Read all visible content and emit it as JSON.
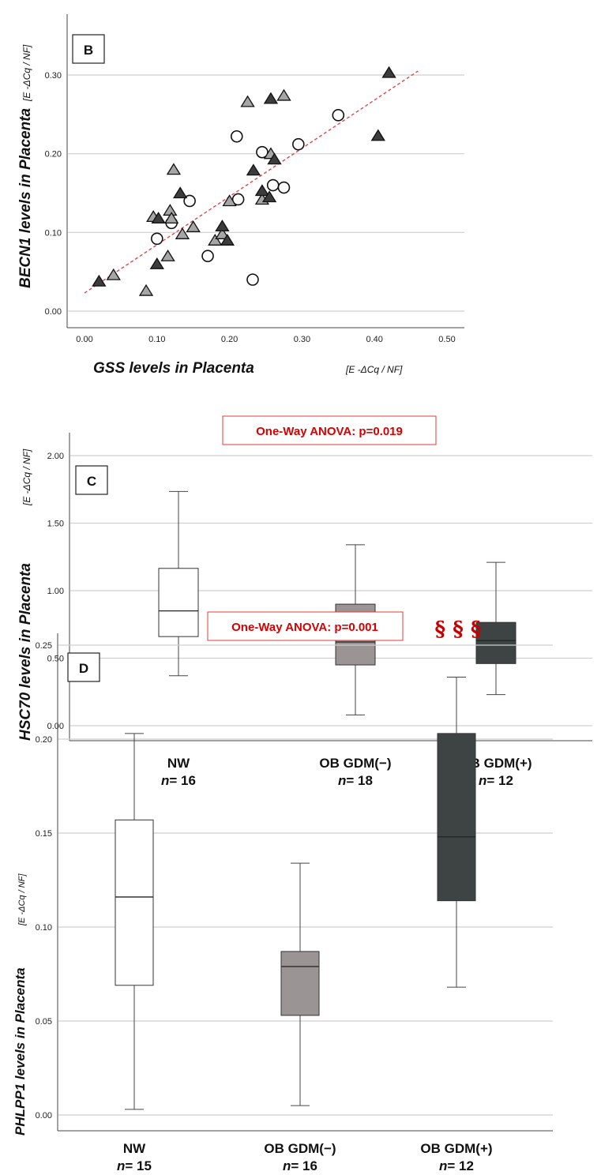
{
  "chart_data": [
    {
      "type": "scatter",
      "panel_label": "B",
      "xlabel": "GSS levels in Placenta",
      "xlabel_unit": "[E -ΔCq / NF]",
      "ylabel": "BECN1 levels in Placenta",
      "ylabel_unit": "[E -ΔCq / NF]",
      "xlim": [
        0.0,
        0.5
      ],
      "ylim": [
        0.0,
        0.3
      ],
      "x_ticks": [
        "0.00",
        "0.10",
        "0.20",
        "0.30",
        "0.40",
        "0.50"
      ],
      "y_ticks": [
        "0.00",
        "0.10",
        "0.20",
        "0.30"
      ],
      "grid": "horizontal",
      "trendline": {
        "style": "dashed",
        "color": "#e03c3c",
        "x": [
          0.0,
          0.46
        ],
        "y": [
          0.023,
          0.305
        ]
      },
      "series": [
        {
          "marker": "circle-open",
          "points": [
            [
              0.1,
              0.092
            ],
            [
              0.12,
              0.112
            ],
            [
              0.145,
              0.14
            ],
            [
              0.17,
              0.07
            ],
            [
              0.21,
              0.222
            ],
            [
              0.212,
              0.142
            ],
            [
              0.232,
              0.04
            ],
            [
              0.245,
              0.202
            ],
            [
              0.26,
              0.16
            ],
            [
              0.275,
              0.157
            ],
            [
              0.295,
              0.212
            ],
            [
              0.35,
              0.249
            ]
          ]
        },
        {
          "marker": "triangle-light",
          "points": [
            [
              0.04,
              0.046
            ],
            [
              0.085,
              0.026
            ],
            [
              0.095,
              0.12
            ],
            [
              0.115,
              0.07
            ],
            [
              0.118,
              0.128
            ],
            [
              0.12,
              0.118
            ],
            [
              0.123,
              0.18
            ],
            [
              0.135,
              0.098
            ],
            [
              0.15,
              0.107
            ],
            [
              0.18,
              0.09
            ],
            [
              0.19,
              0.098
            ],
            [
              0.2,
              0.14
            ],
            [
              0.225,
              0.266
            ],
            [
              0.245,
              0.142
            ],
            [
              0.257,
              0.2
            ],
            [
              0.275,
              0.274
            ]
          ]
        },
        {
          "marker": "triangle-dark",
          "points": [
            [
              0.02,
              0.038
            ],
            [
              0.1,
              0.06
            ],
            [
              0.102,
              0.118
            ],
            [
              0.132,
              0.15
            ],
            [
              0.19,
              0.108
            ],
            [
              0.197,
              0.09
            ],
            [
              0.233,
              0.179
            ],
            [
              0.245,
              0.153
            ],
            [
              0.255,
              0.145
            ],
            [
              0.257,
              0.27
            ],
            [
              0.262,
              0.193
            ],
            [
              0.405,
              0.223
            ],
            [
              0.42,
              0.303
            ]
          ]
        }
      ]
    },
    {
      "type": "box",
      "panel_label": "C",
      "annotation": "One-Way ANOVA: p=0.019",
      "ylabel": "HSC70 levels in Placenta",
      "ylabel_unit": "[E -ΔCq / NF]",
      "ylim": [
        0.0,
        2.0
      ],
      "y_ticks": [
        "0.00",
        "0.50",
        "1.00",
        "1.50",
        "2.00"
      ],
      "grid": "horizontal",
      "categories": [
        "NW",
        "OB GDM(−)",
        "OB GDM(+)"
      ],
      "n_labels": [
        "n= 16",
        "n= 18",
        "n= 12"
      ],
      "colors": [
        "#ffffff",
        "#9b9494",
        "#3e4444"
      ],
      "boxes": [
        {
          "min": 0.37,
          "q1": 0.66,
          "median": 0.85,
          "q3": 1.165,
          "max": 1.735
        },
        {
          "min": 0.08,
          "q1": 0.45,
          "median": 0.62,
          "q3": 0.9,
          "max": 1.34
        },
        {
          "min": 0.23,
          "q1": 0.46,
          "median": 0.63,
          "q3": 0.765,
          "max": 1.21
        }
      ]
    },
    {
      "type": "box",
      "panel_label": "D",
      "annotation": "One-Way ANOVA: p=0.001",
      "significance": "§ § §",
      "ylabel": "PHLPP1 levels in Placenta",
      "ylabel_unit": "[E -ΔCq / NF]",
      "ylim": [
        0.0,
        0.25
      ],
      "y_ticks": [
        "0.00",
        "0.05",
        "0.10",
        "0.15",
        "0.20",
        "0.25"
      ],
      "grid": "horizontal",
      "categories": [
        "NW",
        "OB GDM(−)",
        "OB GDM(+)"
      ],
      "n_labels": [
        "n= 15",
        "n= 16",
        "n= 12"
      ],
      "colors": [
        "#ffffff",
        "#9b9494",
        "#3e4444"
      ],
      "boxes": [
        {
          "min": 0.003,
          "q1": 0.069,
          "median": 0.116,
          "q3": 0.157,
          "max": 0.203
        },
        {
          "min": 0.005,
          "q1": 0.053,
          "median": 0.079,
          "q3": 0.087,
          "max": 0.134
        },
        {
          "min": 0.068,
          "q1": 0.114,
          "median": 0.148,
          "q3": 0.203,
          "max": 0.233
        }
      ]
    }
  ]
}
